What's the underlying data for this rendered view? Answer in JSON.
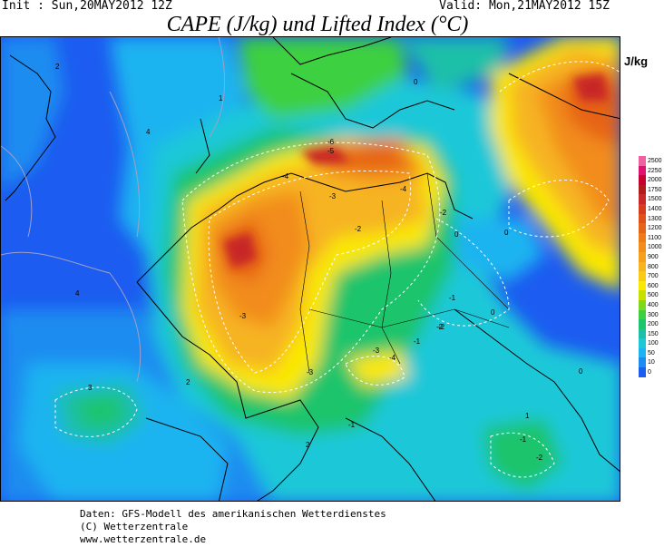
{
  "header": {
    "init": "Init : Sun,20MAY2012 12Z",
    "valid": "Valid: Mon,21MAY2012 15Z",
    "title": "CAPE (J/kg) und Lifted Index (°C)"
  },
  "legend": {
    "unit": "J/kg",
    "levels": [
      {
        "label": "2500",
        "color": "#f060a0"
      },
      {
        "label": "2250",
        "color": "#e01070"
      },
      {
        "label": "2000",
        "color": "#c80030"
      },
      {
        "label": "1750",
        "color": "#b01c1c"
      },
      {
        "label": "1500",
        "color": "#c82828"
      },
      {
        "label": "1400",
        "color": "#d83c1c"
      },
      {
        "label": "1300",
        "color": "#e05018"
      },
      {
        "label": "1200",
        "color": "#e66418"
      },
      {
        "label": "1100",
        "color": "#ee7a18"
      },
      {
        "label": "1000",
        "color": "#f28c1c"
      },
      {
        "label": "900",
        "color": "#f4a01c"
      },
      {
        "label": "800",
        "color": "#f6b420"
      },
      {
        "label": "700",
        "color": "#f8cc14"
      },
      {
        "label": "600",
        "color": "#fae800"
      },
      {
        "label": "500",
        "color": "#c8e000"
      },
      {
        "label": "400",
        "color": "#80d81c"
      },
      {
        "label": "300",
        "color": "#3cd040"
      },
      {
        "label": "200",
        "color": "#1cc46c"
      },
      {
        "label": "150",
        "color": "#1cc0a8"
      },
      {
        "label": "100",
        "color": "#1cc8d8"
      },
      {
        "label": "50",
        "color": "#1cb4f0"
      },
      {
        "label": "10",
        "color": "#1c8cf0"
      },
      {
        "label": "0",
        "color": "#1c5cf0"
      }
    ]
  },
  "lifted_index_labels": [
    "-6",
    "-5",
    "-4",
    "-4",
    "-3",
    "-3",
    "-3",
    "-2",
    "-2",
    "-2",
    "-1",
    "-1",
    "0",
    "0",
    "0",
    "1",
    "2",
    "2",
    "3",
    "4",
    "4",
    "-4",
    "-3",
    "-2",
    "-1",
    "0",
    "1",
    "2",
    "-2",
    "-1",
    "0"
  ],
  "footer": {
    "line1": "Daten: GFS-Modell des amerikanischen Wetterdienstes",
    "line2": "(C) Wetterzentrale",
    "line3": "www.wetterzentrale.de"
  },
  "colors": {
    "ocean_low": "#1c5cf0",
    "cape_10": "#1c8cf0",
    "cape_50": "#1cb4f0",
    "cape_100": "#1cc8d8",
    "cape_150": "#1cc0a8",
    "cape_200": "#1cc46c",
    "cape_300": "#3cd040",
    "cape_500": "#c8e000",
    "cape_600": "#fae800",
    "cape_800": "#f6b420",
    "cape_1000": "#f28c1c",
    "cape_1200": "#e66418",
    "cape_1500": "#c82828"
  }
}
